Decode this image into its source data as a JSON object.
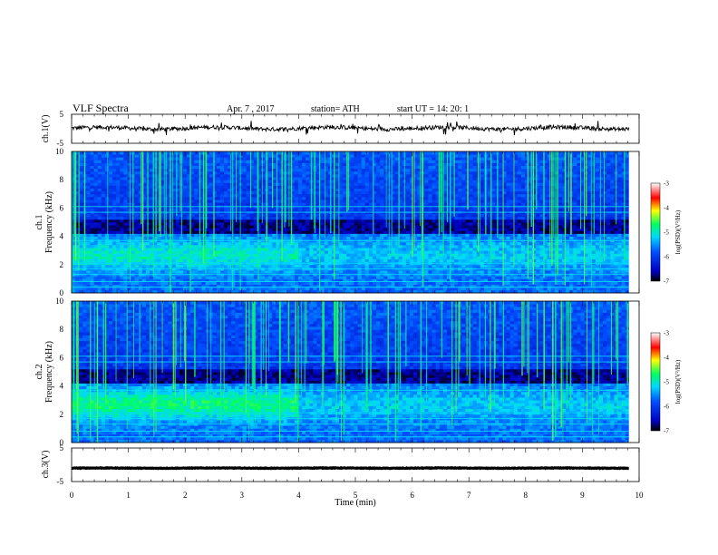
{
  "header": {
    "title": "VLF  Spectra",
    "date": "Apr. 7  , 2017",
    "station": "station= ATH",
    "start": "start  UT  =    14: 20: 1"
  },
  "chart_data": [
    {
      "type": "line",
      "name": "ch1-waveform",
      "ylabel": "ch.1(V)",
      "ylim": [
        -5,
        5
      ],
      "yticks": [
        "5",
        "-5"
      ],
      "x_range_min": [
        0,
        9.82
      ],
      "baseline": 0.2,
      "line_color": "#000000"
    },
    {
      "type": "heatmap",
      "name": "ch1-spectrogram",
      "ylabel_top": "ch.1",
      "ylabel": "Frequency  (kHz)",
      "ylim": [
        0,
        10
      ],
      "yticks": [
        "0",
        "2",
        "4",
        "6",
        "8",
        "10"
      ],
      "x_range_min": [
        0,
        9.82
      ],
      "colorbar": {
        "label": "log(PSD)(V²/Hz)",
        "range": [
          -7,
          -3
        ],
        "ticks": [
          "-3",
          "-4",
          "-5",
          "-6",
          "-7"
        ],
        "colors": [
          "#000000",
          "#0000ff",
          "#00c8ff",
          "#00ff66",
          "#ffff00",
          "#ff0000",
          "#ffffff"
        ]
      }
    },
    {
      "type": "heatmap",
      "name": "ch2-spectrogram",
      "ylabel_top": "ch.2",
      "ylabel": "Frequency  (kHz)",
      "ylim": [
        0,
        10
      ],
      "yticks": [
        "0",
        "2",
        "4",
        "6",
        "8",
        "10"
      ],
      "x_range_min": [
        0,
        9.82
      ],
      "colorbar": {
        "label": "log(PSD)(V²/Hz)",
        "range": [
          -7,
          -3
        ],
        "ticks": [
          "-3",
          "-4",
          "-5",
          "-6",
          "-7"
        ],
        "colors": [
          "#000000",
          "#0000ff",
          "#00c8ff",
          "#00ff66",
          "#ffff00",
          "#ff0000",
          "#ffffff"
        ]
      }
    },
    {
      "type": "line",
      "name": "ch3-waveform",
      "ylabel": "ch.3(V)",
      "ylim": [
        -5,
        5
      ],
      "yticks": [
        "5",
        "-5"
      ],
      "x_range_min": [
        0,
        9.82
      ],
      "baseline": -1.0,
      "line_color": "#000000"
    }
  ],
  "xaxis": {
    "label": "Time  (min)",
    "range": [
      0,
      10
    ],
    "ticks": [
      "0",
      "1",
      "2",
      "3",
      "4",
      "5",
      "6",
      "7",
      "8",
      "9",
      "10"
    ]
  }
}
